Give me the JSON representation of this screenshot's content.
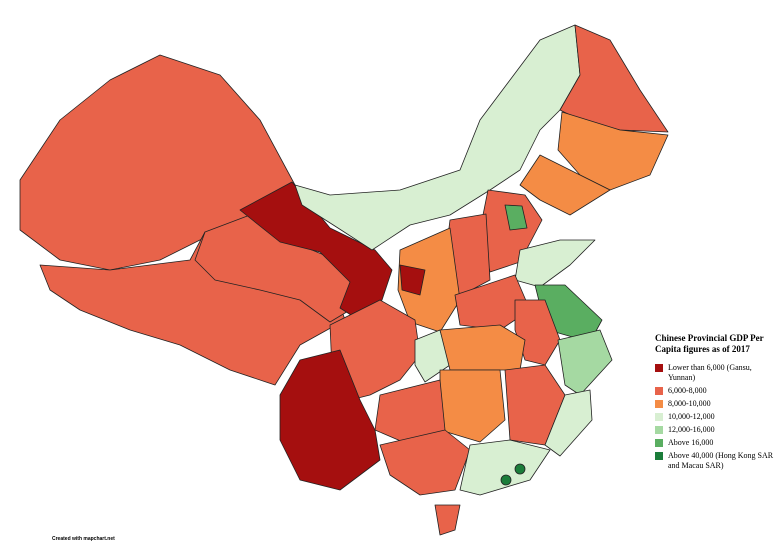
{
  "legend": {
    "title": "Chinese Provincial GDP Per Capita figures as of 2017",
    "items": [
      {
        "label": "Lower than 6,000 (Gansu, Yunnan)",
        "color": "#a50f0f"
      },
      {
        "label": "6,000-8,000",
        "color": "#e8634a"
      },
      {
        "label": "8,000-10,000",
        "color": "#f48c45"
      },
      {
        "label": "10,000-12,000",
        "color": "#d8efd2"
      },
      {
        "label": "12,000-16,000",
        "color": "#a5d9a2"
      },
      {
        "label": "Above 16,000",
        "color": "#5aae61"
      },
      {
        "label": "Above 40,000 (Hong Kong SAR and Macau SAR)",
        "color": "#1b7d3a"
      }
    ]
  },
  "credit": "Created with mapchart.net"
}
